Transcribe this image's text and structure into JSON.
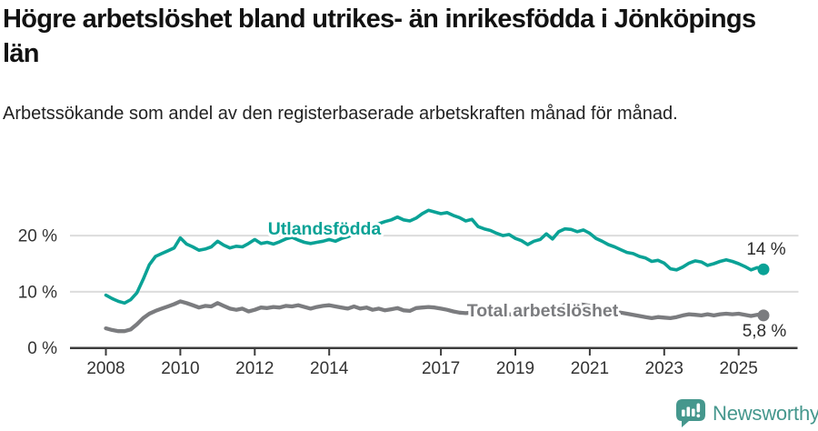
{
  "footer": {
    "brand": "Newsworthy",
    "brand_color": "#45978d"
  },
  "chart_data": {
    "type": "line",
    "title": "Högre arbetslöshet bland utrikes- än inrikesfödda i Jönköpings län",
    "subtitle": "Arbetssökande som andel av den registerbaserade arbetskraften månad för månad.",
    "unit": "%",
    "grid": true,
    "legend_position": "inline-line-labels",
    "x_axis": {
      "start": 2008.0,
      "step_years": 0.166667,
      "end": 2025.67,
      "ticks": [
        2008,
        2010,
        2012,
        2014,
        2017,
        2019,
        2021,
        2023,
        2025
      ]
    },
    "y_axis": {
      "range": [
        0,
        26
      ],
      "ticks": [
        {
          "value": 0,
          "label": "0 %"
        },
        {
          "value": 10,
          "label": "10 %"
        },
        {
          "value": 20,
          "label": "20 %"
        }
      ]
    },
    "series": [
      {
        "name": "Utlandsfödda",
        "color": "#0aa296",
        "end_label": "14 %",
        "end_value": 14,
        "values": [
          9.4,
          8.8,
          8.3,
          8.0,
          8.6,
          9.8,
          12.2,
          14.8,
          16.3,
          16.8,
          17.3,
          17.8,
          19.6,
          18.5,
          18.0,
          17.4,
          17.6,
          18.0,
          19.0,
          18.3,
          17.8,
          18.1,
          18.0,
          18.6,
          19.3,
          18.6,
          18.8,
          18.5,
          18.9,
          19.4,
          19.7,
          19.2,
          18.8,
          18.6,
          18.8,
          19.0,
          19.3,
          19.0,
          19.5,
          19.8,
          20.3,
          20.8,
          21.3,
          21.7,
          22.1,
          22.5,
          22.8,
          23.3,
          22.8,
          22.6,
          23.1,
          23.9,
          24.5,
          24.2,
          23.9,
          24.1,
          23.6,
          23.2,
          22.6,
          22.9,
          21.6,
          21.2,
          20.9,
          20.4,
          20.0,
          20.2,
          19.5,
          19.1,
          18.4,
          19.0,
          19.3,
          20.3,
          19.4,
          20.7,
          21.2,
          21.1,
          20.7,
          21.0,
          20.4,
          19.5,
          19.0,
          18.4,
          18.0,
          17.5,
          17.0,
          16.8,
          16.3,
          16.0,
          15.4,
          15.6,
          15.1,
          14.1,
          13.9,
          14.4,
          15.1,
          15.5,
          15.3,
          14.7,
          15.0,
          15.4,
          15.7,
          15.4,
          15.0,
          14.5,
          13.9,
          14.3,
          14.0
        ]
      },
      {
        "name": "Total arbetslöshet",
        "color": "#7b7c7f",
        "end_label": "5,8 %",
        "end_value": 5.8,
        "values": [
          3.5,
          3.2,
          3.0,
          3.0,
          3.3,
          4.2,
          5.3,
          6.1,
          6.6,
          7.0,
          7.4,
          7.8,
          8.3,
          8.0,
          7.6,
          7.2,
          7.5,
          7.4,
          8.0,
          7.5,
          7.0,
          6.8,
          7.0,
          6.5,
          6.8,
          7.2,
          7.1,
          7.3,
          7.2,
          7.5,
          7.4,
          7.6,
          7.3,
          7.0,
          7.3,
          7.5,
          7.6,
          7.4,
          7.2,
          7.0,
          7.4,
          7.0,
          7.2,
          6.8,
          7.0,
          6.7,
          6.9,
          7.1,
          6.7,
          6.6,
          7.1,
          7.2,
          7.3,
          7.2,
          7.0,
          6.8,
          6.5,
          6.3,
          6.2,
          6.3,
          6.1,
          6.0,
          5.9,
          5.8,
          5.9,
          6.0,
          5.9,
          6.0,
          6.1,
          6.2,
          6.3,
          6.4,
          6.6,
          7.2,
          7.7,
          7.9,
          7.8,
          7.7,
          7.5,
          7.2,
          7.0,
          6.8,
          6.5,
          6.3,
          6.1,
          5.9,
          5.7,
          5.5,
          5.3,
          5.5,
          5.4,
          5.3,
          5.5,
          5.8,
          6.0,
          5.9,
          5.8,
          6.0,
          5.8,
          6.0,
          6.1,
          6.0,
          6.1,
          5.9,
          5.7,
          5.9,
          5.8
        ]
      }
    ]
  }
}
